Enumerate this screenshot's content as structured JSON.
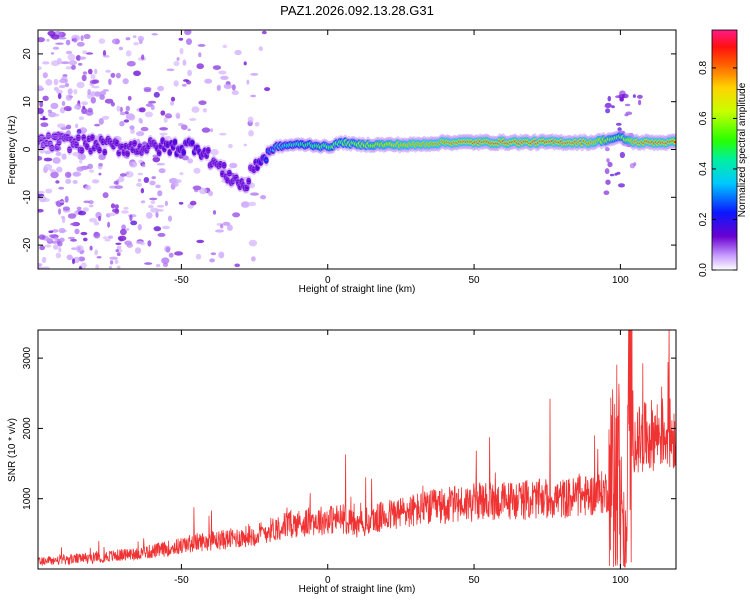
{
  "title": "PAZ1.2026.092.13.28.G31",
  "chart_data": [
    {
      "type": "heatmap",
      "xlabel": "Height of straight line (km)",
      "ylabel": "Frequency (Hz)",
      "xlim": [
        -99,
        119
      ],
      "ylim": [
        -25,
        25
      ],
      "x_ticks": [
        -50,
        0,
        50,
        100
      ],
      "y_ticks": [
        -20,
        -10,
        0,
        10,
        20
      ],
      "colorbar": {
        "label": "Normalized spectral amplitude",
        "range": [
          0,
          0.95
        ],
        "ticks": [
          0.0,
          0.2,
          0.4,
          0.6,
          0.8
        ]
      },
      "ridge": {
        "x": [
          -99,
          -90,
          -80,
          -70,
          -60,
          -50,
          -45,
          -40,
          -35,
          -30,
          -28,
          -25,
          -22,
          -18,
          -12,
          -6,
          0,
          5,
          10,
          20,
          30,
          40,
          50,
          60,
          70,
          80,
          90,
          95,
          100,
          105,
          110,
          119
        ],
        "frequency": [
          1.5,
          1.5,
          1.0,
          0.5,
          0.5,
          0.5,
          1.0,
          -2.0,
          -5.0,
          -7.0,
          -8.0,
          -3.0,
          -2.0,
          0.5,
          1.0,
          1.0,
          0.5,
          1.5,
          1.0,
          1.0,
          1.0,
          1.5,
          1.5,
          1.5,
          1.5,
          1.5,
          1.5,
          2.0,
          2.5,
          1.5,
          1.5,
          1.5
        ],
        "amplitude": [
          0.1,
          0.12,
          0.15,
          0.15,
          0.15,
          0.2,
          0.2,
          0.15,
          0.15,
          0.15,
          0.15,
          0.15,
          0.25,
          0.4,
          0.5,
          0.55,
          0.6,
          0.6,
          0.65,
          0.75,
          0.8,
          0.85,
          0.9,
          0.9,
          0.9,
          0.9,
          0.85,
          0.7,
          0.6,
          0.85,
          0.9,
          0.9
        ]
      }
    },
    {
      "type": "line",
      "xlabel": "Height of straight line (km)",
      "ylabel": "SNR (10 * v/v)",
      "xlim": [
        -99,
        119
      ],
      "ylim": [
        0,
        3400
      ],
      "x_ticks": [
        -50,
        0,
        50,
        100
      ],
      "y_ticks": [
        1000,
        2000,
        3000
      ],
      "color": "#f03232",
      "series": [
        {
          "x": [
            -99,
            -90,
            -80,
            -70,
            -60,
            -50,
            -45,
            -40,
            -35,
            -30,
            -25,
            -20,
            -15,
            -10,
            -5,
            0,
            5,
            8,
            10,
            12,
            20,
            30,
            40,
            50,
            60,
            70,
            80,
            90,
            95,
            97,
            99,
            100,
            102,
            103,
            105,
            110,
            115,
            119
          ],
          "values": [
            110,
            130,
            160,
            200,
            250,
            330,
            380,
            400,
            420,
            450,
            480,
            550,
            620,
            650,
            680,
            700,
            720,
            680,
            600,
            650,
            760,
            840,
            900,
            950,
            970,
            990,
            1000,
            1050,
            1100,
            1150,
            1800,
            900,
            200,
            2500,
            1800,
            1900,
            1950,
            1900
          ]
        }
      ]
    }
  ]
}
